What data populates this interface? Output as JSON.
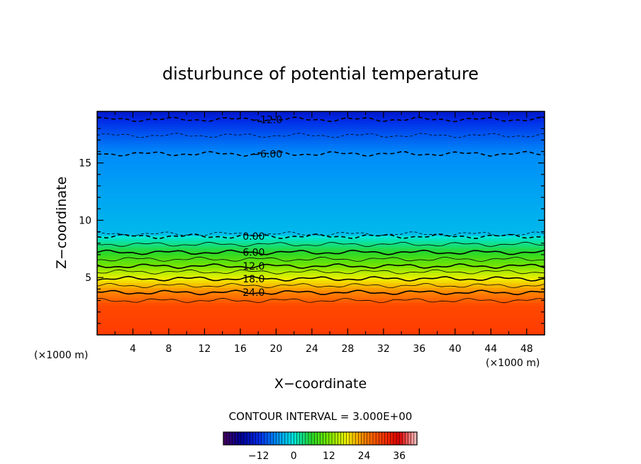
{
  "chart_data": {
    "type": "contour",
    "title": "disturbunce of potential temperature",
    "xlabel": "X−coordinate",
    "ylabel": "Z−coordinate",
    "x_unit_left": "(×1000 m)",
    "x_unit_right": "(×1000 m)",
    "xlim": [
      0,
      50
    ],
    "ylim": [
      0,
      19.5
    ],
    "x_ticks": [
      4,
      8,
      12,
      16,
      20,
      24,
      28,
      32,
      36,
      40,
      44,
      48
    ],
    "y_ticks": [
      5,
      10,
      15
    ],
    "contour_interval_text": "CONTOUR INTERVAL = 3.000E+00",
    "contour_interval": 3,
    "levels_labeled": [
      {
        "value": -12,
        "text": "−12.0",
        "z": 18.8,
        "x_label": 19,
        "dashed": true
      },
      {
        "value": -6,
        "text": "−6.00",
        "z": 15.8,
        "x_label": 19,
        "dashed": true
      },
      {
        "value": 0,
        "text": "0.00",
        "z": 8.6,
        "x_label": 17.5,
        "dashed": true
      },
      {
        "value": 6,
        "text": "6.00",
        "z": 7.2,
        "x_label": 17.5,
        "dashed": false
      },
      {
        "value": 12,
        "text": "12.0",
        "z": 6.0,
        "x_label": 17.5,
        "dashed": false
      },
      {
        "value": 18,
        "text": "18.0",
        "z": 4.9,
        "x_label": 17.5,
        "dashed": false
      },
      {
        "value": 24,
        "text": "24.0",
        "z": 3.7,
        "x_label": 17.5,
        "dashed": false
      }
    ],
    "levels_unlabeled": [
      {
        "value": -9,
        "z": 17.4,
        "dashed": true
      },
      {
        "value": -3,
        "z": 8.8,
        "dashed": true
      },
      {
        "value": 3,
        "z": 7.9,
        "dashed": false
      },
      {
        "value": 9,
        "z": 6.6,
        "dashed": false
      },
      {
        "value": 15,
        "z": 5.5,
        "dashed": false
      },
      {
        "value": 21,
        "z": 4.3,
        "dashed": false
      },
      {
        "value": 27,
        "z": 3.0,
        "dashed": false
      }
    ],
    "colorbar": {
      "range": [
        -24,
        42
      ],
      "ticks": [
        {
          "value": -12,
          "text": "−12"
        },
        {
          "value": 0,
          "text": "0"
        },
        {
          "value": 12,
          "text": "12"
        },
        {
          "value": 24,
          "text": "24"
        },
        {
          "value": 36,
          "text": "36"
        }
      ]
    }
  }
}
